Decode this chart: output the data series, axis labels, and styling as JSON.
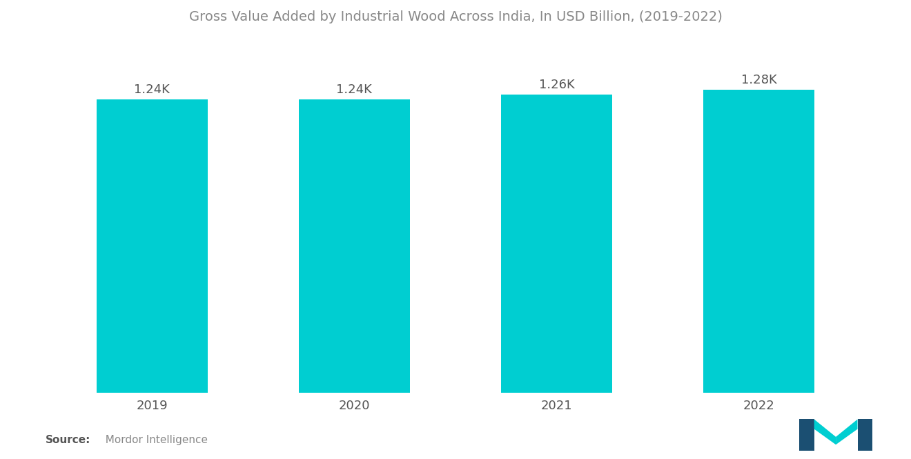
{
  "title": "Gross Value Added by Industrial Wood Across India, In USD Billion, (2019-2022)",
  "categories": [
    "2019",
    "2020",
    "2021",
    "2022"
  ],
  "values": [
    1240,
    1240,
    1260,
    1280
  ],
  "bar_color": "#00CED1",
  "bar_labels": [
    "1.24K",
    "1.24K",
    "1.26K",
    "1.28K"
  ],
  "background_color": "#ffffff",
  "title_color": "#888888",
  "title_fontsize": 14,
  "label_fontsize": 13,
  "tick_fontsize": 13,
  "source_bold": "Source:",
  "source_detail": "  Mordor Intelligence",
  "ylim": [
    0,
    1500
  ],
  "bar_width": 0.55
}
